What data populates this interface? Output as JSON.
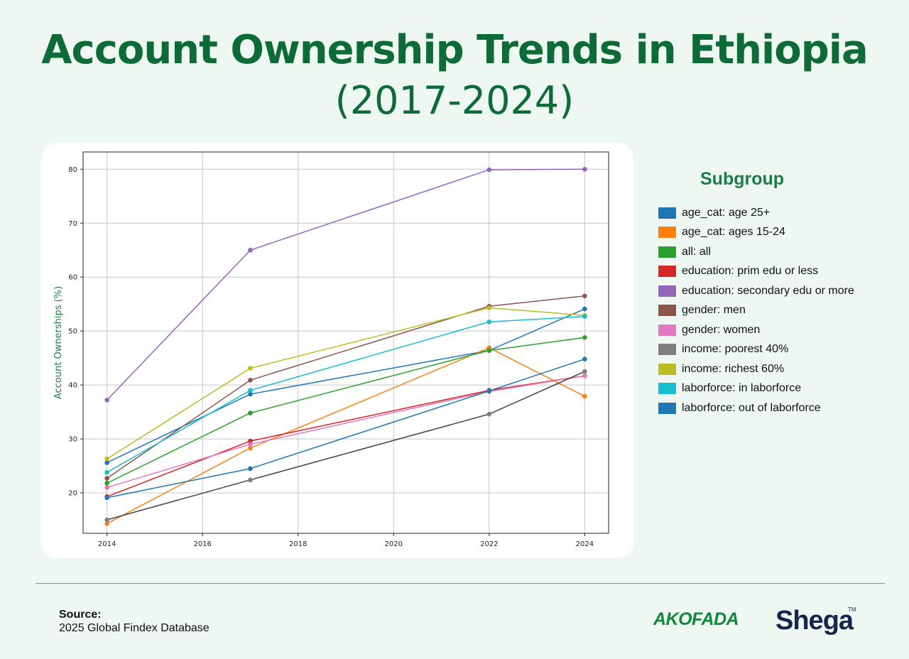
{
  "header": {
    "title": "Account Ownership Trends in Ethiopia",
    "subtitle": "(2017-2024)"
  },
  "legend": {
    "title": "Subgroup"
  },
  "footer": {
    "source_label": "Source:",
    "source_value": "2025 Global Findex Database",
    "logo_left": "AKOFADA",
    "logo_right": "Shega",
    "logo_right_tm": "TM"
  },
  "chart_data": {
    "type": "line",
    "ylabel": "Account Ownerships (%)",
    "xlabel": "",
    "xlim": [
      2013.5,
      2024.5
    ],
    "ylim": [
      12.5,
      83.2
    ],
    "xticks": [
      2014,
      2016,
      2018,
      2020,
      2022,
      2024
    ],
    "yticks": [
      20,
      30,
      40,
      50,
      60,
      70,
      80
    ],
    "grid": true,
    "legend_position": "right",
    "x": [
      2014,
      2017,
      2022,
      2024
    ],
    "series": [
      {
        "name": "age_cat: age 25+",
        "color": "#1f77b4",
        "values": [
          25.6,
          38.3,
          46.4,
          54.1
        ]
      },
      {
        "name": "age_cat: ages 15-24",
        "color": "#ff7f0e",
        "values": [
          14.3,
          28.3,
          46.9,
          37.9
        ]
      },
      {
        "name": "all: all",
        "color": "#2ca02c",
        "values": [
          21.8,
          34.8,
          46.4,
          48.8
        ]
      },
      {
        "name": "education: prim edu or less",
        "color": "#d62728",
        "values": [
          19.3,
          29.6,
          39.0,
          41.7
        ]
      },
      {
        "name": "education: secondary edu or more",
        "color": "#9467bd",
        "values": [
          37.2,
          65.0,
          79.9,
          80.0
        ]
      },
      {
        "name": "gender: men",
        "color": "#8c564b",
        "values": [
          22.7,
          40.9,
          54.6,
          56.5
        ]
      },
      {
        "name": "gender: women",
        "color": "#e377c2",
        "values": [
          21.0,
          29.0,
          38.8,
          41.7
        ]
      },
      {
        "name": "income: poorest 40%",
        "color": "#7f7f7f",
        "values": [
          15.0,
          22.4,
          34.6,
          42.5
        ]
      },
      {
        "name": "income: richest 60%",
        "color": "#bcbd22",
        "values": [
          26.3,
          43.1,
          54.3,
          52.9
        ]
      },
      {
        "name": "laborforce: in laborforce",
        "color": "#17becf",
        "values": [
          23.8,
          39.0,
          51.7,
          52.7
        ]
      },
      {
        "name": "laborforce: out of laborforce",
        "color": "#1f77b4",
        "values": [
          19.1,
          24.5,
          38.9,
          44.8
        ]
      }
    ]
  }
}
